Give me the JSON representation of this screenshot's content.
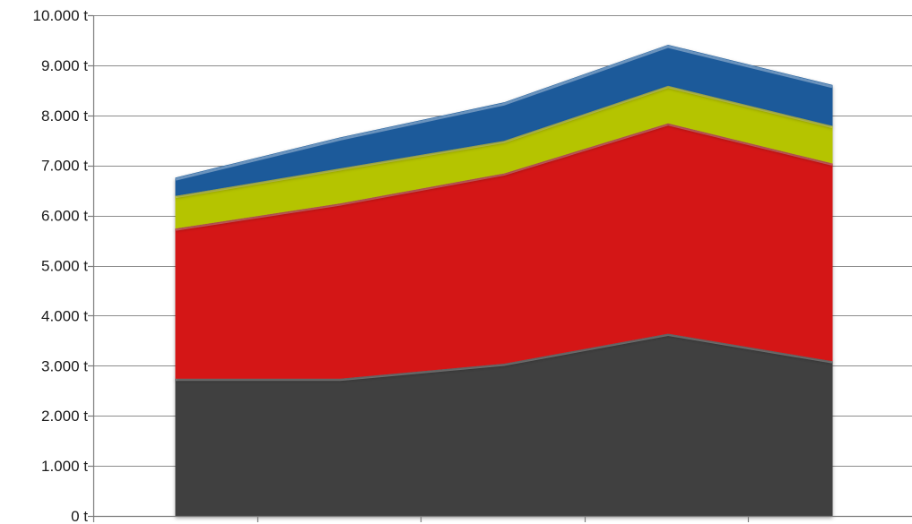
{
  "chart_data": {
    "type": "area",
    "stacked": true,
    "title": "",
    "xlabel": "",
    "ylabel": "",
    "categories": [
      "",
      "",
      "",
      "",
      ""
    ],
    "ylim": [
      0,
      10000
    ],
    "yticks": [
      0,
      1000,
      2000,
      3000,
      4000,
      5000,
      6000,
      7000,
      8000,
      9000,
      10000
    ],
    "ytick_labels": [
      "0 t",
      "1.000 t",
      "2.000 t",
      "3.000 t",
      "4.000 t",
      "5.000 t",
      "6.000 t",
      "7.000 t",
      "8.000 t",
      "9.000 t",
      "10.000 t"
    ],
    "grid": true,
    "legend": "none",
    "series": [
      {
        "color": "#404040",
        "values": [
          2750,
          2750,
          3050,
          3650,
          3100
        ]
      },
      {
        "color": "#d41414",
        "values": [
          3000,
          3500,
          3800,
          4200,
          3950
        ]
      },
      {
        "color": "#b5c400",
        "values": [
          650,
          700,
          650,
          750,
          750
        ]
      },
      {
        "color": "#1a5a9a",
        "values": [
          350,
          600,
          750,
          800,
          800
        ]
      }
    ]
  }
}
